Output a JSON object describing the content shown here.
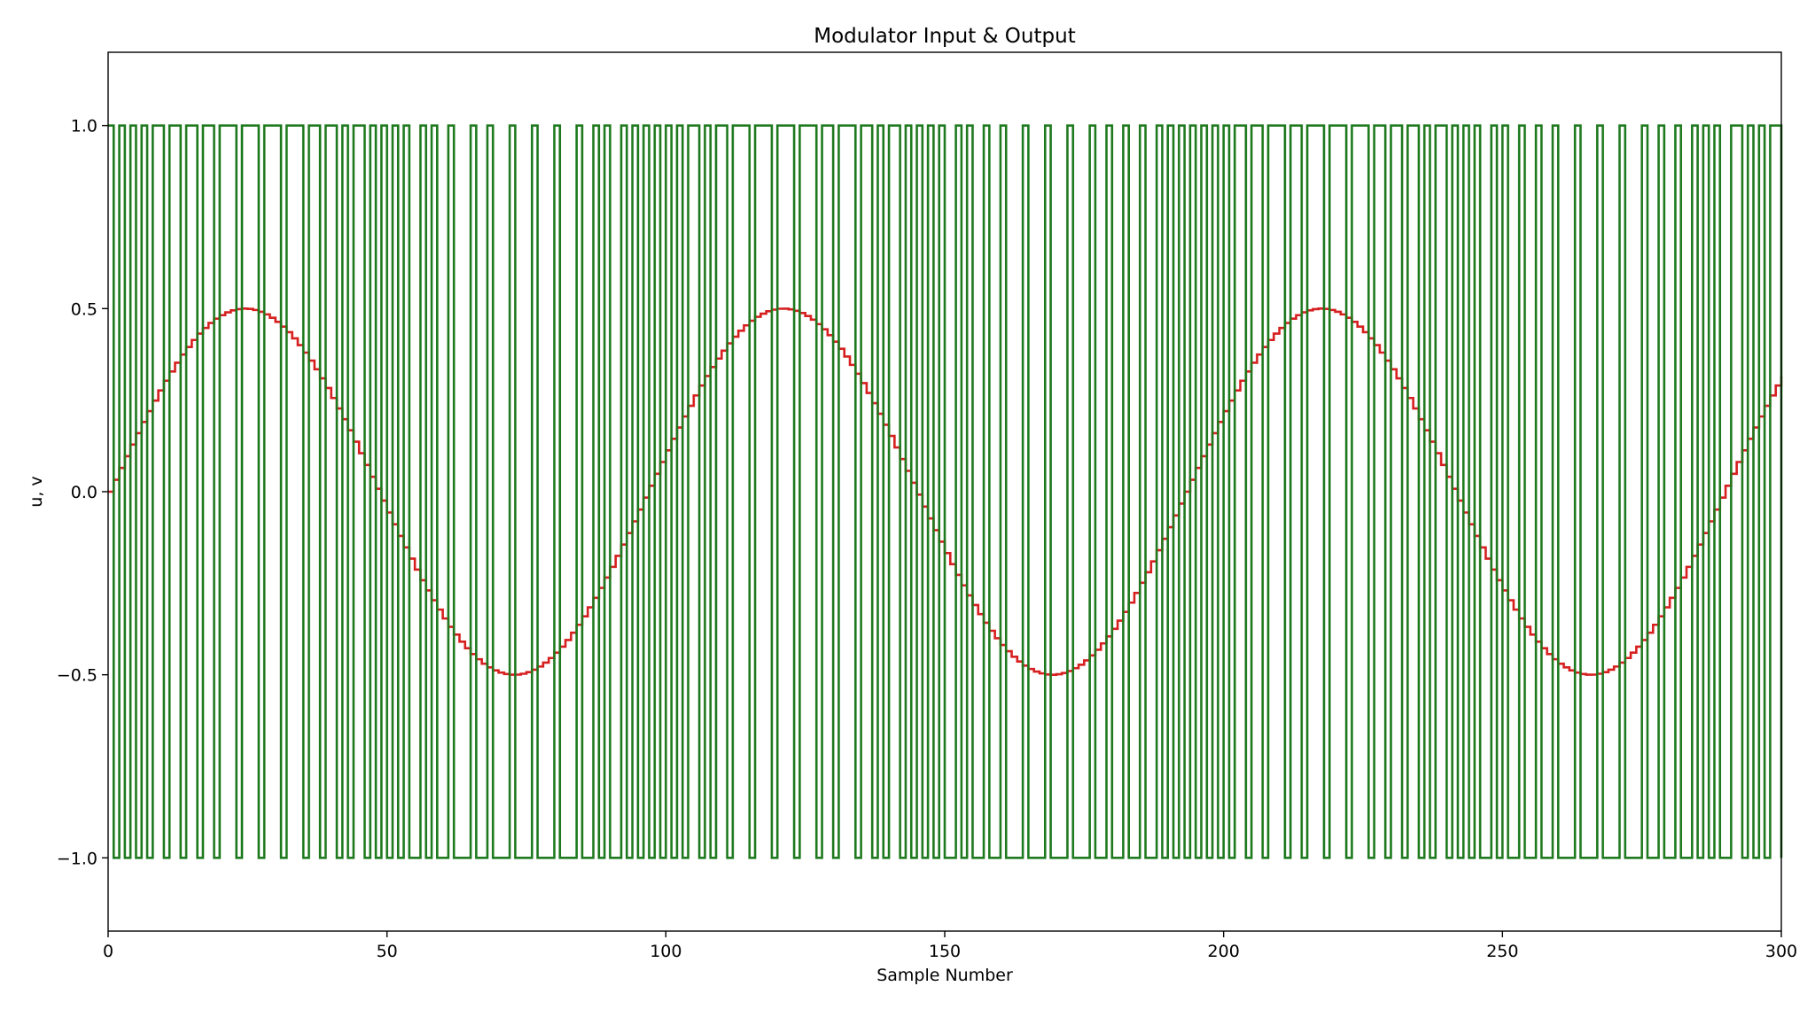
{
  "chart_data": {
    "type": "line",
    "title": "Modulator Input & Output",
    "xlabel": "Sample Number",
    "ylabel": "u, v",
    "xlim": [
      0,
      300
    ],
    "ylim": [
      -1.2,
      1.2
    ],
    "xticks": [
      0,
      50,
      100,
      150,
      200,
      250,
      300
    ],
    "xtick_labels": [
      "0",
      "50",
      "100",
      "150",
      "200",
      "250",
      "300"
    ],
    "yticks": [
      -1.0,
      -0.5,
      0.0,
      0.5,
      1.0
    ],
    "ytick_labels": [
      "−1.0",
      "−0.5",
      "0.0",
      "0.5",
      "1.0"
    ],
    "grid": false,
    "legend": "none",
    "step": "post",
    "series": [
      {
        "color": "#d62020",
        "role": "input u",
        "amplitude": 0.5,
        "period_samples": 96.5,
        "n_samples": 301,
        "values_note": "u[n] = 0.5 * sin(2*pi*n/96.5), n = 0..300"
      },
      {
        "color": "#1f7a1f",
        "role": "output v",
        "levels": [
          -1,
          1
        ],
        "n_samples": 301
      }
    ]
  }
}
